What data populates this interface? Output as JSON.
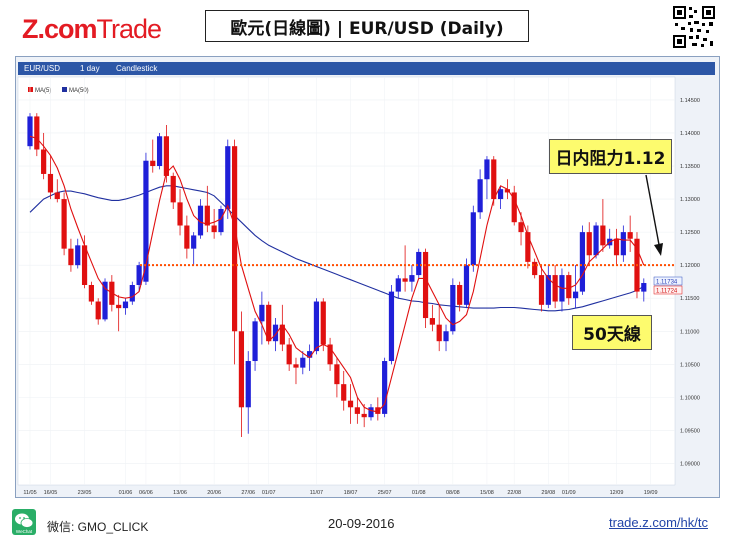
{
  "header": {
    "logo_z": "Z",
    "logo_dot": ".",
    "logo_com": "com",
    "logo_trade": "Trade",
    "title": "歐元(日線圖) | EUR/USD  (Daily)"
  },
  "toolbar": {
    "symbol": "EUR/USD",
    "interval": "1 day",
    "chart_type": "Candlestick"
  },
  "legend": {
    "ma5": "MA(5)",
    "ma50": "MA(50)"
  },
  "annotations": {
    "resistance": "日内阻力1.12",
    "ma50_label": "50天線",
    "price_tag_1": "1.11734",
    "price_tag_2": "1.11724"
  },
  "footer": {
    "wechat_label": "微信: GMO_CLICK",
    "wechat_icon_text": "WeChat",
    "date": "20-09-2016",
    "url": "trade.z.com/hk/tc"
  },
  "colors": {
    "bull": "#1f1fd8",
    "bear": "#e01010",
    "ma5": "#e01010",
    "ma50": "#2030a0",
    "resistance": "#ff4d00",
    "brand": "#e31b23"
  },
  "chart_data": {
    "type": "candlestick",
    "title": "歐元(日線圖) | EUR/USD  (Daily)",
    "ylim": [
      1.0875,
      1.1465
    ],
    "y_ticks": [
      "1.14500",
      "1.14000",
      "1.13500",
      "1.13000",
      "1.12500",
      "1.12000",
      "1.11500",
      "1.11000",
      "1.10500",
      "1.10000",
      "1.09500",
      "1.09000"
    ],
    "x_ticks": [
      "11/05",
      "16/05",
      "23/05",
      "01/06",
      "06/06",
      "13/06",
      "20/06",
      "27/06",
      "01/07",
      "11/07",
      "18/07",
      "25/07",
      "01/08",
      "08/08",
      "15/08",
      "22/08",
      "29/08",
      "01/09",
      "12/09",
      "19/09"
    ],
    "x_tick_index": [
      0,
      3,
      8,
      14,
      17,
      22,
      27,
      32,
      35,
      42,
      47,
      52,
      57,
      62,
      67,
      71,
      76,
      79,
      86,
      91
    ],
    "resistance_level": 1.12,
    "series": [
      {
        "name": "MA(5)"
      },
      {
        "name": "MA(50)"
      }
    ],
    "candles": [
      [
        1.138,
        1.143,
        1.1375,
        1.1425
      ],
      [
        1.1425,
        1.143,
        1.1365,
        1.1375
      ],
      [
        1.1375,
        1.14,
        1.133,
        1.1338
      ],
      [
        1.1338,
        1.1365,
        1.13,
        1.131
      ],
      [
        1.131,
        1.133,
        1.1295,
        1.13
      ],
      [
        1.13,
        1.131,
        1.1215,
        1.1225
      ],
      [
        1.1225,
        1.124,
        1.119,
        1.12
      ],
      [
        1.12,
        1.124,
        1.1195,
        1.123
      ],
      [
        1.123,
        1.1245,
        1.1165,
        1.117
      ],
      [
        1.117,
        1.1175,
        1.114,
        1.1145
      ],
      [
        1.1145,
        1.115,
        1.111,
        1.1118
      ],
      [
        1.1118,
        1.118,
        1.1115,
        1.1175
      ],
      [
        1.1175,
        1.1185,
        1.113,
        1.114
      ],
      [
        1.114,
        1.1155,
        1.11,
        1.1135
      ],
      [
        1.1135,
        1.115,
        1.1125,
        1.1145
      ],
      [
        1.1145,
        1.1175,
        1.114,
        1.117
      ],
      [
        1.117,
        1.1205,
        1.116,
        1.12
      ],
      [
        1.1175,
        1.137,
        1.117,
        1.1358
      ],
      [
        1.1358,
        1.139,
        1.134,
        1.135
      ],
      [
        1.135,
        1.14,
        1.1345,
        1.1395
      ],
      [
        1.1395,
        1.1412,
        1.1325,
        1.1335
      ],
      [
        1.1335,
        1.134,
        1.1285,
        1.1295
      ],
      [
        1.1295,
        1.1315,
        1.1245,
        1.126
      ],
      [
        1.126,
        1.1275,
        1.121,
        1.1225
      ],
      [
        1.1225,
        1.125,
        1.12,
        1.1245
      ],
      [
        1.1245,
        1.13,
        1.124,
        1.129
      ],
      [
        1.129,
        1.132,
        1.125,
        1.126
      ],
      [
        1.126,
        1.1285,
        1.124,
        1.125
      ],
      [
        1.125,
        1.129,
        1.1245,
        1.1285
      ],
      [
        1.1285,
        1.139,
        1.127,
        1.138
      ],
      [
        1.138,
        1.139,
        1.105,
        1.11
      ],
      [
        1.11,
        1.113,
        1.094,
        1.0985
      ],
      [
        1.0985,
        1.107,
        1.0945,
        1.1055
      ],
      [
        1.1055,
        1.112,
        1.104,
        1.1115
      ],
      [
        1.1115,
        1.116,
        1.108,
        1.114
      ],
      [
        1.114,
        1.1145,
        1.108,
        1.1085
      ],
      [
        1.1085,
        1.112,
        1.107,
        1.111
      ],
      [
        1.111,
        1.114,
        1.107,
        1.108
      ],
      [
        1.108,
        1.109,
        1.104,
        1.105
      ],
      [
        1.105,
        1.106,
        1.102,
        1.1045
      ],
      [
        1.1045,
        1.107,
        1.1035,
        1.106
      ],
      [
        1.106,
        1.108,
        1.104,
        1.107
      ],
      [
        1.107,
        1.115,
        1.1065,
        1.1145
      ],
      [
        1.1145,
        1.115,
        1.107,
        1.108
      ],
      [
        1.108,
        1.109,
        1.104,
        1.105
      ],
      [
        1.105,
        1.106,
        1.1,
        1.102
      ],
      [
        1.102,
        1.104,
        1.098,
        1.0995
      ],
      [
        1.0995,
        1.102,
        1.096,
        1.0985
      ],
      [
        1.0985,
        1.1,
        1.096,
        1.0975
      ],
      [
        1.0975,
        1.099,
        1.0955,
        1.097
      ],
      [
        1.097,
        1.099,
        1.0965,
        1.0985
      ],
      [
        1.0985,
        1.1,
        1.0965,
        1.0975
      ],
      [
        1.0975,
        1.106,
        1.097,
        1.1055
      ],
      [
        1.1055,
        1.117,
        1.105,
        1.116
      ],
      [
        1.116,
        1.1185,
        1.115,
        1.118
      ],
      [
        1.118,
        1.123,
        1.116,
        1.1175
      ],
      [
        1.1175,
        1.12,
        1.116,
        1.1185
      ],
      [
        1.1185,
        1.1225,
        1.118,
        1.122
      ],
      [
        1.122,
        1.1225,
        1.1105,
        1.112
      ],
      [
        1.112,
        1.114,
        1.11,
        1.111
      ],
      [
        1.111,
        1.114,
        1.107,
        1.1085
      ],
      [
        1.1085,
        1.111,
        1.107,
        1.11
      ],
      [
        1.11,
        1.118,
        1.1095,
        1.117
      ],
      [
        1.117,
        1.1175,
        1.113,
        1.114
      ],
      [
        1.114,
        1.121,
        1.1135,
        1.12
      ],
      [
        1.12,
        1.129,
        1.119,
        1.128
      ],
      [
        1.128,
        1.1345,
        1.127,
        1.133
      ],
      [
        1.133,
        1.1365,
        1.13,
        1.136
      ],
      [
        1.136,
        1.1365,
        1.129,
        1.13
      ],
      [
        1.13,
        1.132,
        1.1285,
        1.1315
      ],
      [
        1.1315,
        1.133,
        1.13,
        1.131
      ],
      [
        1.131,
        1.132,
        1.126,
        1.1265
      ],
      [
        1.1265,
        1.128,
        1.123,
        1.125
      ],
      [
        1.125,
        1.126,
        1.1195,
        1.1205
      ],
      [
        1.1205,
        1.121,
        1.118,
        1.1185
      ],
      [
        1.1185,
        1.12,
        1.113,
        1.114
      ],
      [
        1.114,
        1.12,
        1.1135,
        1.1185
      ],
      [
        1.1185,
        1.12,
        1.1135,
        1.1145
      ],
      [
        1.1145,
        1.1195,
        1.113,
        1.1185
      ],
      [
        1.1185,
        1.119,
        1.114,
        1.115
      ],
      [
        1.115,
        1.12,
        1.1135,
        1.116
      ],
      [
        1.116,
        1.126,
        1.1155,
        1.125
      ],
      [
        1.125,
        1.1265,
        1.12,
        1.1215
      ],
      [
        1.1215,
        1.1265,
        1.121,
        1.126
      ],
      [
        1.126,
        1.13,
        1.122,
        1.123
      ],
      [
        1.123,
        1.1255,
        1.1225,
        1.124
      ],
      [
        1.124,
        1.1255,
        1.12,
        1.1215
      ],
      [
        1.1215,
        1.126,
        1.1205,
        1.125
      ],
      [
        1.125,
        1.1275,
        1.122,
        1.124
      ],
      [
        1.124,
        1.125,
        1.115,
        1.116
      ],
      [
        1.116,
        1.118,
        1.1145,
        1.1173
      ]
    ],
    "ma5": [
      1.1395,
      1.1392,
      1.138,
      1.1366,
      1.1347,
      1.132,
      1.1285,
      1.1257,
      1.123,
      1.1205,
      1.118,
      1.1165,
      1.1158,
      1.1152,
      1.115,
      1.1152,
      1.116,
      1.12,
      1.125,
      1.1298,
      1.134,
      1.135,
      1.133,
      1.13,
      1.1275,
      1.1265,
      1.1262,
      1.1265,
      1.127,
      1.129,
      1.126,
      1.12,
      1.1165,
      1.113,
      1.111,
      1.1085,
      1.1095,
      1.111,
      1.1095,
      1.1075,
      1.1067,
      1.106,
      1.1075,
      1.108,
      1.1075,
      1.106,
      1.1045,
      1.103,
      1.1,
      1.0985,
      1.098,
      1.0978,
      1.099,
      1.103,
      1.107,
      1.111,
      1.115,
      1.118,
      1.118,
      1.116,
      1.114,
      1.112,
      1.111,
      1.1115,
      1.1125,
      1.116,
      1.121,
      1.126,
      1.13,
      1.132,
      1.1315,
      1.13,
      1.1275,
      1.1245,
      1.122,
      1.1195,
      1.118,
      1.117,
      1.1165,
      1.1165,
      1.117,
      1.1185,
      1.1205,
      1.1215,
      1.1225,
      1.1235,
      1.124,
      1.1238,
      1.1238,
      1.1225,
      1.12
    ],
    "ma50": [
      1.128,
      1.129,
      1.13,
      1.1305,
      1.131,
      1.1312,
      1.1312,
      1.131,
      1.1308,
      1.1305,
      1.1302,
      1.13,
      1.1298,
      1.1298,
      1.13,
      1.1303,
      1.1306,
      1.131,
      1.1314,
      1.1318,
      1.132,
      1.132,
      1.1318,
      1.1316,
      1.1314,
      1.1312,
      1.131,
      1.1305,
      1.1295,
      1.1285,
      1.1275,
      1.1265,
      1.1255,
      1.1245,
      1.1237,
      1.123,
      1.1225,
      1.122,
      1.1215,
      1.121,
      1.1206,
      1.1202,
      1.1198,
      1.1194,
      1.119,
      1.1186,
      1.1182,
      1.1178,
      1.1174,
      1.117,
      1.1166,
      1.1162,
      1.1158,
      1.1154,
      1.115,
      1.1148,
      1.1146,
      1.1145,
      1.1143,
      1.1142,
      1.114,
      1.1139,
      1.1138,
      1.1137,
      1.1136,
      1.1135,
      1.1135,
      1.1135,
      1.1135,
      1.1136,
      1.1136,
      1.1136,
      1.1135,
      1.1134,
      1.1133,
      1.1132,
      1.1131,
      1.1131,
      1.1132,
      1.1133,
      1.1135,
      1.1137,
      1.114,
      1.1143,
      1.1146,
      1.1149,
      1.1152,
      1.1155,
      1.1158,
      1.1162,
      1.1168
    ]
  }
}
